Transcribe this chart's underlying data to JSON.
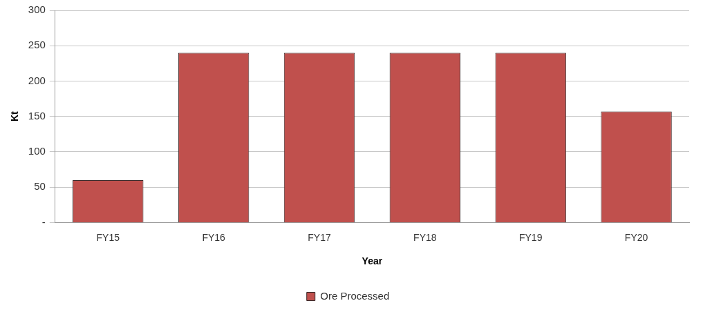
{
  "chart_data": {
    "type": "bar",
    "xlabel": "Year",
    "ylabel": "Kt",
    "categories": [
      "FY15",
      "FY16",
      "FY17",
      "FY18",
      "FY19",
      "FY20"
    ],
    "series": [
      {
        "name": "Ore Processed",
        "color": "#c0504d",
        "values": [
          60,
          240,
          240,
          240,
          240,
          157
        ]
      }
    ],
    "ylim": [
      0,
      300
    ],
    "yticks": [
      {
        "value": 0,
        "label": "-"
      },
      50,
      100,
      150,
      200,
      250,
      300
    ],
    "grid": "y",
    "legend": "bottom"
  }
}
